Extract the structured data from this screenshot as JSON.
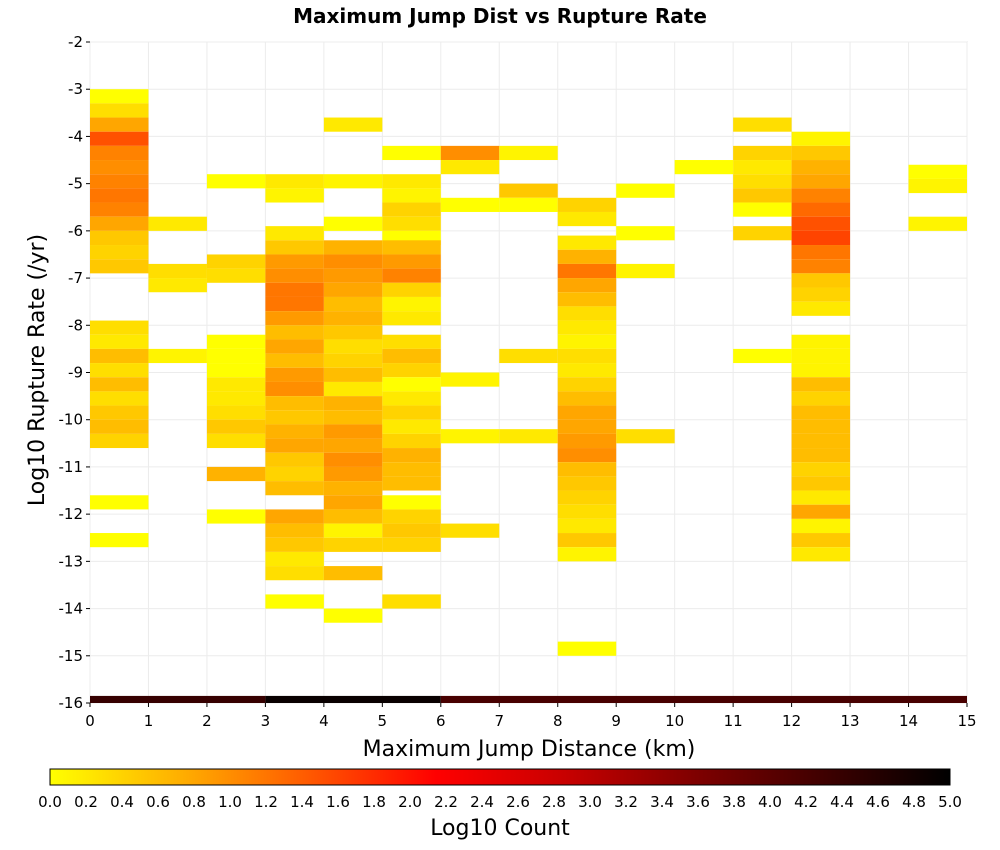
{
  "chart_data": {
    "type": "heatmap",
    "title": "Maximum Jump Dist vs Rupture Rate",
    "xlabel": "Maximum Jump Distance (km)",
    "ylabel": "Log10 Rupture Rate (/yr)",
    "xlim": [
      0,
      15
    ],
    "ylim": [
      -16,
      -2
    ],
    "x_ticks": [
      "0",
      "1",
      "2",
      "3",
      "4",
      "5",
      "6",
      "7",
      "8",
      "9",
      "10",
      "11",
      "12",
      "13",
      "14",
      "15"
    ],
    "y_ticks": [
      "-2",
      "-3",
      "-4",
      "-5",
      "-6",
      "-7",
      "-8",
      "-9",
      "-10",
      "-11",
      "-12",
      "-13",
      "-14",
      "-15",
      "-16"
    ],
    "bin_width_km": 1,
    "bin_height_log10": 0.3,
    "colorbar": {
      "label": "Log10 Count",
      "range": [
        0,
        5
      ],
      "ticks": [
        "0.0",
        "0.2",
        "0.4",
        "0.6",
        "0.8",
        "1.0",
        "1.2",
        "1.4",
        "1.6",
        "1.8",
        "2.0",
        "2.2",
        "2.4",
        "2.6",
        "2.8",
        "3.0",
        "3.2",
        "3.4",
        "3.6",
        "3.8",
        "4.0",
        "4.2",
        "4.4",
        "4.6",
        "4.8",
        "5.0"
      ],
      "colors": [
        "#ffff00",
        "#ffb000",
        "#ff5a00",
        "#ff0000",
        "#c80000",
        "#800000",
        "#400000",
        "#000000"
      ]
    },
    "cells": [
      [
        0,
        -3.15,
        0.0
      ],
      [
        0,
        -3.45,
        0.3
      ],
      [
        0,
        -3.75,
        0.8
      ],
      [
        0,
        -4.05,
        1.5
      ],
      [
        0,
        -4.35,
        1.1
      ],
      [
        0,
        -4.65,
        1.0
      ],
      [
        0,
        -4.95,
        1.1
      ],
      [
        0,
        -5.25,
        1.2
      ],
      [
        0,
        -5.55,
        1.1
      ],
      [
        0,
        -5.85,
        0.8
      ],
      [
        0,
        -6.15,
        0.5
      ],
      [
        0,
        -6.45,
        0.4
      ],
      [
        0,
        -6.75,
        0.5
      ],
      [
        0,
        -8.05,
        0.3
      ],
      [
        0,
        -8.35,
        0.2
      ],
      [
        0,
        -8.65,
        0.6
      ],
      [
        0,
        -8.95,
        0.3
      ],
      [
        0,
        -9.25,
        0.6
      ],
      [
        0,
        -9.55,
        0.3
      ],
      [
        0,
        -9.85,
        0.5
      ],
      [
        0,
        -10.15,
        0.6
      ],
      [
        0,
        -10.45,
        0.4
      ],
      [
        0,
        -11.75,
        0.0
      ],
      [
        0,
        -12.55,
        0.0
      ],
      [
        1,
        -5.85,
        0.2
      ],
      [
        1,
        -6.85,
        0.3
      ],
      [
        1,
        -7.15,
        0.2
      ],
      [
        1,
        -8.65,
        0.1
      ],
      [
        2,
        -4.95,
        0.0
      ],
      [
        2,
        -6.65,
        0.4
      ],
      [
        2,
        -6.95,
        0.3
      ],
      [
        2,
        -8.35,
        0.0
      ],
      [
        2,
        -8.65,
        0.0
      ],
      [
        2,
        -8.95,
        0.0
      ],
      [
        2,
        -9.25,
        0.2
      ],
      [
        2,
        -9.55,
        0.2
      ],
      [
        2,
        -9.85,
        0.3
      ],
      [
        2,
        -10.15,
        0.5
      ],
      [
        2,
        -10.45,
        0.3
      ],
      [
        2,
        -11.15,
        0.7
      ],
      [
        2,
        -12.05,
        0.0
      ],
      [
        3,
        -4.95,
        0.2
      ],
      [
        3,
        -5.25,
        0.1
      ],
      [
        3,
        -6.05,
        0.2
      ],
      [
        3,
        -6.35,
        0.5
      ],
      [
        3,
        -6.65,
        0.9
      ],
      [
        3,
        -6.95,
        1.0
      ],
      [
        3,
        -7.25,
        1.2
      ],
      [
        3,
        -7.55,
        1.2
      ],
      [
        3,
        -7.85,
        0.9
      ],
      [
        3,
        -8.15,
        0.6
      ],
      [
        3,
        -8.45,
        0.8
      ],
      [
        3,
        -8.75,
        0.6
      ],
      [
        3,
        -9.05,
        0.9
      ],
      [
        3,
        -9.35,
        1.0
      ],
      [
        3,
        -9.65,
        0.6
      ],
      [
        3,
        -9.95,
        0.5
      ],
      [
        3,
        -10.25,
        0.7
      ],
      [
        3,
        -10.55,
        0.8
      ],
      [
        3,
        -10.85,
        0.5
      ],
      [
        3,
        -11.15,
        0.4
      ],
      [
        3,
        -11.45,
        0.6
      ],
      [
        3,
        -12.05,
        0.8
      ],
      [
        3,
        -12.35,
        0.6
      ],
      [
        3,
        -12.65,
        0.5
      ],
      [
        3,
        -12.95,
        0.2
      ],
      [
        3,
        -13.25,
        0.3
      ],
      [
        3,
        -13.85,
        0.0
      ],
      [
        4,
        -3.75,
        0.2
      ],
      [
        4,
        -4.95,
        0.1
      ],
      [
        4,
        -5.85,
        0.0
      ],
      [
        4,
        -6.35,
        0.7
      ],
      [
        4,
        -6.65,
        1.0
      ],
      [
        4,
        -6.95,
        0.9
      ],
      [
        4,
        -7.25,
        0.8
      ],
      [
        4,
        -7.55,
        0.6
      ],
      [
        4,
        -7.85,
        0.7
      ],
      [
        4,
        -8.15,
        0.5
      ],
      [
        4,
        -8.45,
        0.3
      ],
      [
        4,
        -8.75,
        0.4
      ],
      [
        4,
        -9.05,
        0.6
      ],
      [
        4,
        -9.35,
        0.2
      ],
      [
        4,
        -9.65,
        0.7
      ],
      [
        4,
        -9.95,
        0.6
      ],
      [
        4,
        -10.25,
        0.9
      ],
      [
        4,
        -10.55,
        0.8
      ],
      [
        4,
        -10.85,
        1.0
      ],
      [
        4,
        -11.15,
        0.9
      ],
      [
        4,
        -11.45,
        0.7
      ],
      [
        4,
        -11.75,
        0.8
      ],
      [
        4,
        -12.05,
        0.6
      ],
      [
        4,
        -12.35,
        0.1
      ],
      [
        4,
        -12.65,
        0.4
      ],
      [
        4,
        -13.25,
        0.6
      ],
      [
        4,
        -14.15,
        0.0
      ],
      [
        5,
        -4.35,
        0.0
      ],
      [
        5,
        -4.95,
        0.2
      ],
      [
        5,
        -5.25,
        0.1
      ],
      [
        5,
        -5.55,
        0.4
      ],
      [
        5,
        -5.85,
        0.3
      ],
      [
        5,
        -6.15,
        0.0
      ],
      [
        5,
        -6.35,
        0.6
      ],
      [
        5,
        -6.65,
        0.9
      ],
      [
        5,
        -6.95,
        1.1
      ],
      [
        5,
        -7.25,
        0.4
      ],
      [
        5,
        -7.55,
        0.1
      ],
      [
        5,
        -7.85,
        0.2
      ],
      [
        5,
        -8.35,
        0.3
      ],
      [
        5,
        -8.65,
        0.6
      ],
      [
        5,
        -8.95,
        0.4
      ],
      [
        5,
        -9.25,
        0.0
      ],
      [
        5,
        -9.55,
        0.2
      ],
      [
        5,
        -9.85,
        0.4
      ],
      [
        5,
        -10.15,
        0.2
      ],
      [
        5,
        -10.45,
        0.4
      ],
      [
        5,
        -10.75,
        0.7
      ],
      [
        5,
        -11.05,
        0.6
      ],
      [
        5,
        -11.35,
        0.6
      ],
      [
        5,
        -11.75,
        0.0
      ],
      [
        5,
        -12.05,
        0.4
      ],
      [
        5,
        -12.35,
        0.5
      ],
      [
        5,
        -12.65,
        0.4
      ],
      [
        5,
        -13.85,
        0.3
      ],
      [
        6,
        -4.35,
        1.0
      ],
      [
        6,
        -4.65,
        0.2
      ],
      [
        6,
        -5.45,
        0.0
      ],
      [
        6,
        -9.15,
        0.1
      ],
      [
        6,
        -10.35,
        0.1
      ],
      [
        6,
        -12.35,
        0.3
      ],
      [
        7,
        -4.35,
        0.1
      ],
      [
        7,
        -5.15,
        0.5
      ],
      [
        7,
        -5.45,
        0.0
      ],
      [
        7,
        -8.65,
        0.3
      ],
      [
        7,
        -10.35,
        0.2
      ],
      [
        8,
        -5.45,
        0.4
      ],
      [
        8,
        -5.75,
        0.2
      ],
      [
        8,
        -6.25,
        0.2
      ],
      [
        8,
        -6.55,
        0.7
      ],
      [
        8,
        -6.85,
        1.2
      ],
      [
        8,
        -7.15,
        0.8
      ],
      [
        8,
        -7.45,
        0.6
      ],
      [
        8,
        -7.75,
        0.3
      ],
      [
        8,
        -8.05,
        0.2
      ],
      [
        8,
        -8.35,
        0.1
      ],
      [
        8,
        -8.65,
        0.3
      ],
      [
        8,
        -8.95,
        0.2
      ],
      [
        8,
        -9.25,
        0.4
      ],
      [
        8,
        -9.55,
        0.6
      ],
      [
        8,
        -9.85,
        0.8
      ],
      [
        8,
        -10.15,
        0.8
      ],
      [
        8,
        -10.45,
        0.9
      ],
      [
        8,
        -10.75,
        1.0
      ],
      [
        8,
        -11.05,
        0.6
      ],
      [
        8,
        -11.35,
        0.5
      ],
      [
        8,
        -11.65,
        0.4
      ],
      [
        8,
        -11.95,
        0.3
      ],
      [
        8,
        -12.25,
        0.2
      ],
      [
        8,
        -12.55,
        0.5
      ],
      [
        8,
        -12.85,
        0.1
      ],
      [
        8,
        -14.85,
        0.0
      ],
      [
        9,
        -5.15,
        0.0
      ],
      [
        9,
        -6.05,
        0.0
      ],
      [
        9,
        -6.85,
        0.1
      ],
      [
        9,
        -10.35,
        0.3
      ],
      [
        10,
        -4.65,
        0.0
      ],
      [
        11,
        -3.75,
        0.3
      ],
      [
        11,
        -4.35,
        0.4
      ],
      [
        11,
        -4.65,
        0.2
      ],
      [
        11,
        -4.95,
        0.3
      ],
      [
        11,
        -5.25,
        0.5
      ],
      [
        11,
        -5.55,
        0.0
      ],
      [
        11,
        -6.05,
        0.4
      ],
      [
        11,
        -8.65,
        0.0
      ],
      [
        12,
        -4.05,
        0.1
      ],
      [
        12,
        -4.35,
        0.5
      ],
      [
        12,
        -4.65,
        0.7
      ],
      [
        12,
        -4.95,
        0.8
      ],
      [
        12,
        -5.25,
        1.1
      ],
      [
        12,
        -5.55,
        1.3
      ],
      [
        12,
        -5.85,
        1.5
      ],
      [
        12,
        -6.15,
        1.6
      ],
      [
        12,
        -6.45,
        1.2
      ],
      [
        12,
        -6.75,
        1.1
      ],
      [
        12,
        -7.05,
        0.5
      ],
      [
        12,
        -7.35,
        0.4
      ],
      [
        12,
        -7.65,
        0.2
      ],
      [
        12,
        -8.35,
        0.1
      ],
      [
        12,
        -8.65,
        0.1
      ],
      [
        12,
        -8.95,
        0.1
      ],
      [
        12,
        -9.25,
        0.6
      ],
      [
        12,
        -9.55,
        0.4
      ],
      [
        12,
        -9.85,
        0.6
      ],
      [
        12,
        -10.15,
        0.6
      ],
      [
        12,
        -10.45,
        0.6
      ],
      [
        12,
        -10.75,
        0.6
      ],
      [
        12,
        -11.05,
        0.4
      ],
      [
        12,
        -11.35,
        0.5
      ],
      [
        12,
        -11.65,
        0.2
      ],
      [
        12,
        -11.95,
        0.8
      ],
      [
        12,
        -12.25,
        0.1
      ],
      [
        12,
        -12.55,
        0.5
      ],
      [
        12,
        -12.85,
        0.2
      ],
      [
        14,
        -4.75,
        0.0
      ],
      [
        14,
        -5.05,
        0.1
      ],
      [
        14,
        -5.85,
        0.1
      ]
    ],
    "bottom_row": {
      "y_range": [
        -16,
        -15.85
      ],
      "segments": [
        [
          0,
          3,
          4.4
        ],
        [
          3,
          6,
          4.9
        ],
        [
          6,
          15,
          4.2
        ]
      ]
    }
  }
}
